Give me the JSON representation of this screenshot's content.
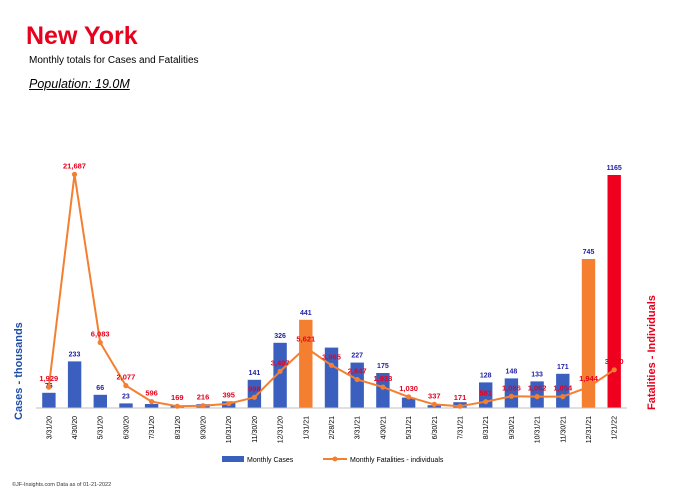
{
  "header": {
    "title": "New York",
    "subtitle": "Monthly totals for Cases and Fatalities",
    "population": "Population: 19.0M"
  },
  "footer": "©JF-Insights.com  Data as of 01-21-2022",
  "colors": {
    "title": "#e8001c",
    "cases_bar": "#3a5fbf",
    "highlight_orange": "#f47f31",
    "highlight_red": "#f0001f",
    "fatalities_line": "#f47f31",
    "cases_label": "#1f1fa8",
    "fatalities_label": "#e8001c"
  },
  "chart_data": {
    "type": "bar",
    "title": "New York",
    "ylabel": "Cases - thousands",
    "y2label": "Fatalities - Individuals",
    "categories": [
      "3/31/20",
      "4/30/20",
      "5/31/20",
      "6/30/20",
      "7/31/20",
      "8/31/20",
      "9/30/20",
      "10/31/20",
      "11/30/20",
      "12/31/20",
      "1/31/21",
      "2/28/21",
      "3/31/21",
      "4/30/21",
      "5/31/21",
      "6/30/21",
      "7/31/21",
      "8/31/21",
      "9/30/21",
      "10/31/21",
      "11/30/21",
      "12/31/21",
      "1/21/22"
    ],
    "series": [
      {
        "name": "Monthly Cases",
        "type": "bar",
        "axis": "left",
        "values": [
          76,
          233,
          66,
          23,
          20,
          13,
          19,
          33,
          141,
          326,
          441,
          302,
          227,
          175,
          52,
          14,
          29,
          128,
          148,
          133,
          171,
          745,
          1165
        ],
        "labels": [
          "76",
          "233",
          "66",
          "23",
          "",
          "",
          "",
          "",
          "141",
          "326",
          "441",
          "",
          "227",
          "175",
          "",
          "",
          "",
          "128",
          "148",
          "133",
          "171",
          "745",
          "1165"
        ],
        "highlight": {
          "10": "orange",
          "21": "orange",
          "22": "red"
        }
      },
      {
        "name": "Monthly Fatalities - individuals",
        "type": "line",
        "axis": "right",
        "values": [
          1929,
          21687,
          6083,
          2077,
          596,
          169,
          216,
          395,
          998,
          3407,
          5621,
          3965,
          2647,
          1938,
          1030,
          337,
          171,
          581,
          1086,
          1062,
          1054,
          1944,
          3550
        ],
        "labels": [
          "1,929",
          "21,687",
          "6,083",
          "2,077",
          "596",
          "169",
          "216",
          "395",
          "998",
          "3,407",
          "5,621",
          "3,965",
          "2,647",
          "1,938",
          "1,030",
          "337",
          "171",
          "581",
          "1,086",
          "1,062",
          "1,054",
          "1,944",
          "3,550"
        ]
      }
    ],
    "ylim": [
      0,
      1400
    ],
    "y2lim": [
      0,
      26000
    ],
    "grid": false,
    "legend": "bottom"
  }
}
